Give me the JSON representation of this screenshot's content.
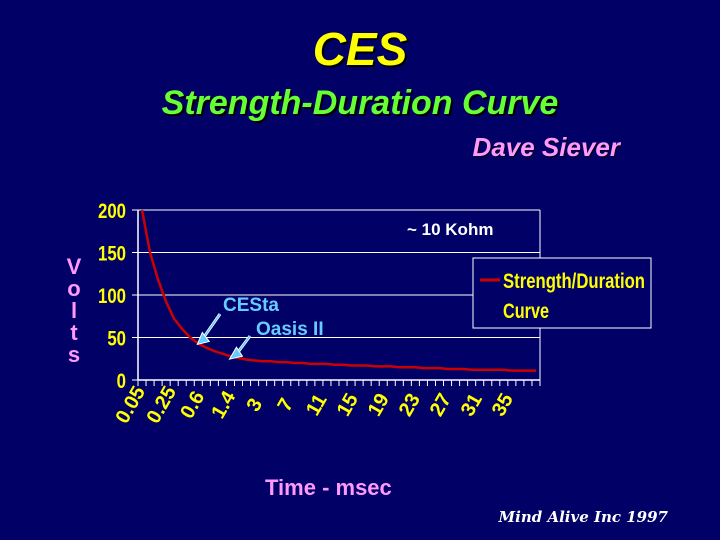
{
  "slide": {
    "title": "CES",
    "subtitle": "Strength-Duration Curve",
    "author": "Dave Siever",
    "footer": "Mind Alive Inc 1997"
  },
  "chart_data": {
    "type": "line",
    "xlabel": "Time - msec",
    "ylabel": "Volts",
    "ylim": [
      0,
      200
    ],
    "yticks": [
      0,
      50,
      100,
      150,
      200
    ],
    "x_tick_labels": [
      "0.05",
      "0.25",
      "0.6",
      "1.4",
      "3",
      "7",
      "11",
      "15",
      "19",
      "23",
      "27",
      "31",
      "35"
    ],
    "grid": "horizontal",
    "legend": "right",
    "series": [
      {
        "name": "Strength/Duration Curve",
        "color": "#cc0000",
        "values": [
          200,
          150,
          118,
          92,
          72,
          60,
          50,
          43,
          38,
          34,
          31,
          28,
          26,
          24,
          23,
          22,
          22,
          21,
          21,
          20,
          20,
          19,
          19,
          19,
          18,
          18,
          17,
          17,
          17,
          16,
          16,
          16,
          15,
          15,
          15,
          14,
          14,
          14,
          13,
          13,
          13,
          12,
          12,
          12,
          12,
          12,
          11,
          11,
          11,
          11
        ]
      }
    ],
    "annotations": [
      {
        "text": "~ 10 Kohm"
      },
      {
        "text": "CESta",
        "index": 7
      },
      {
        "text": "Oasis II",
        "index": 11
      }
    ]
  }
}
